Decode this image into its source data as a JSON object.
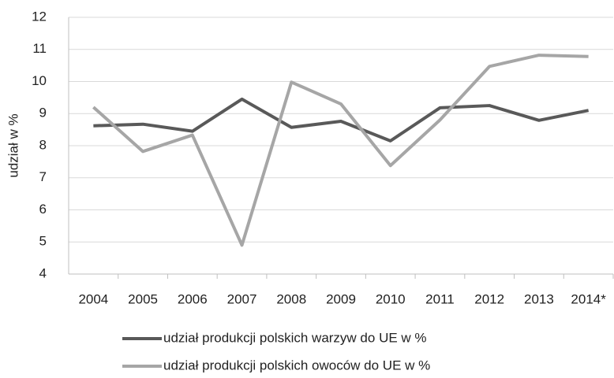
{
  "chart_data": {
    "type": "line",
    "y_label": "udział w %",
    "categories": [
      "2004",
      "2005",
      "2006",
      "2007",
      "2008",
      "2009",
      "2010",
      "2011",
      "2012",
      "2013",
      "2014*"
    ],
    "series": [
      {
        "name": "udział produkcji polskich warzyw do UE w %",
        "color": "#595959",
        "values": [
          8.62,
          8.67,
          8.45,
          9.45,
          8.57,
          8.76,
          8.15,
          9.18,
          9.25,
          8.79,
          9.1
        ]
      },
      {
        "name": "udział produkcji polskich owoców do UE w %",
        "color": "#a6a6a6",
        "values": [
          9.2,
          7.82,
          8.33,
          4.9,
          9.98,
          9.3,
          7.38,
          8.8,
          10.47,
          10.82,
          10.78
        ]
      }
    ],
    "ylim": [
      4,
      12
    ],
    "yticks": [
      4,
      5,
      6,
      7,
      8,
      9,
      10,
      11,
      12
    ],
    "grid": true,
    "legend": "bottom"
  }
}
